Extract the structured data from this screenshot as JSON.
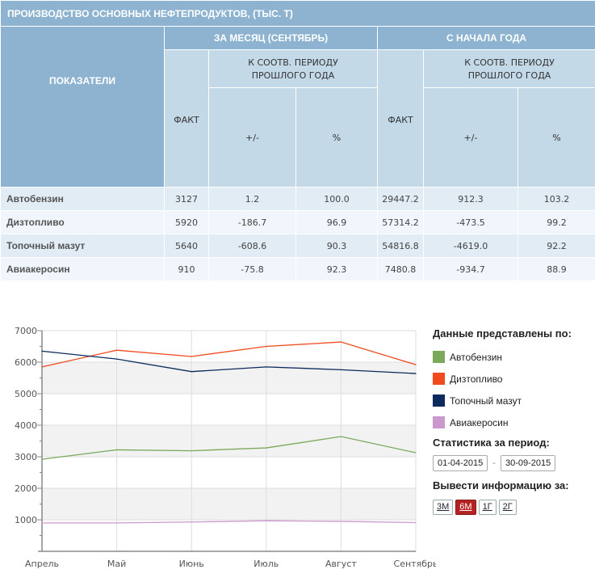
{
  "table": {
    "title": "ПРОИЗВОДСТВО ОСНОВНЫХ НЕФТЕПРОДУКТОВ, (ТЫС. Т)",
    "header_indicators": "ПОКАЗАТЕЛИ",
    "header_month": "ЗА МЕСЯЦ (СЕНТЯБРЬ)",
    "header_ytd": "С НАЧАЛА ГОДА",
    "header_fact": "ФАКТ",
    "header_compare_line1": "К СООТВ. ПЕРИОДУ",
    "header_compare_line2": "ПРОШЛОГО ГОДА",
    "header_diff": "+/-",
    "header_pct": "%",
    "rows": [
      {
        "name": "Автобензин",
        "m_fact": "3127",
        "m_diff": "1.2",
        "m_pct": "100.0",
        "y_fact": "29447.2",
        "y_diff": "912.3",
        "y_pct": "103.2"
      },
      {
        "name": "Дизтопливо",
        "m_fact": "5920",
        "m_diff": "-186.7",
        "m_pct": "96.9",
        "y_fact": "57314.2",
        "y_diff": "-473.5",
        "y_pct": "99.2"
      },
      {
        "name": "Топочный мазут",
        "m_fact": "5640",
        "m_diff": "-608.6",
        "m_pct": "90.3",
        "y_fact": "54816.8",
        "y_diff": "-4619.0",
        "y_pct": "92.2"
      },
      {
        "name": "Авиакеросин",
        "m_fact": "910",
        "m_diff": "-75.8",
        "m_pct": "92.3",
        "y_fact": "7480.8",
        "y_diff": "-934.7",
        "y_pct": "88.9"
      }
    ]
  },
  "chart_data": {
    "type": "line",
    "title": "",
    "xlabel": "",
    "ylabel": "",
    "categories": [
      "Апрель",
      "Май",
      "Июнь",
      "Июль",
      "Август",
      "Сентябрь"
    ],
    "ylim": [
      0,
      7000
    ],
    "yticks": [
      1000,
      2000,
      3000,
      4000,
      5000,
      6000,
      7000
    ],
    "grid": true,
    "alternating_bands": true,
    "legend_position": "right",
    "series": [
      {
        "name": "Автобензин",
        "color": "#7aa95c",
        "values": [
          2920,
          3220,
          3190,
          3280,
          3640,
          3127
        ]
      },
      {
        "name": "Дизтопливо",
        "color": "#f04a1e",
        "values": [
          5850,
          6380,
          6180,
          6500,
          6640,
          5920
        ]
      },
      {
        "name": "Топочный мазут",
        "color": "#0d2a5c",
        "values": [
          6350,
          6100,
          5700,
          5850,
          5760,
          5640
        ]
      },
      {
        "name": "Авиакеросин",
        "color": "#cc99cc",
        "values": [
          900,
          900,
          930,
          970,
          950,
          910
        ]
      }
    ]
  },
  "sidebar": {
    "legend_title": "Данные представлены по:",
    "period_title": "Статистика за период:",
    "date_from": "01-04-2015",
    "date_separator": "-",
    "date_to": "30-09-2015",
    "range_title": "Вывести информацию за:",
    "range_buttons": [
      {
        "label": "3М",
        "active": false
      },
      {
        "label": "6М",
        "active": true
      },
      {
        "label": "1Г",
        "active": false
      },
      {
        "label": "2Г",
        "active": false
      }
    ]
  }
}
